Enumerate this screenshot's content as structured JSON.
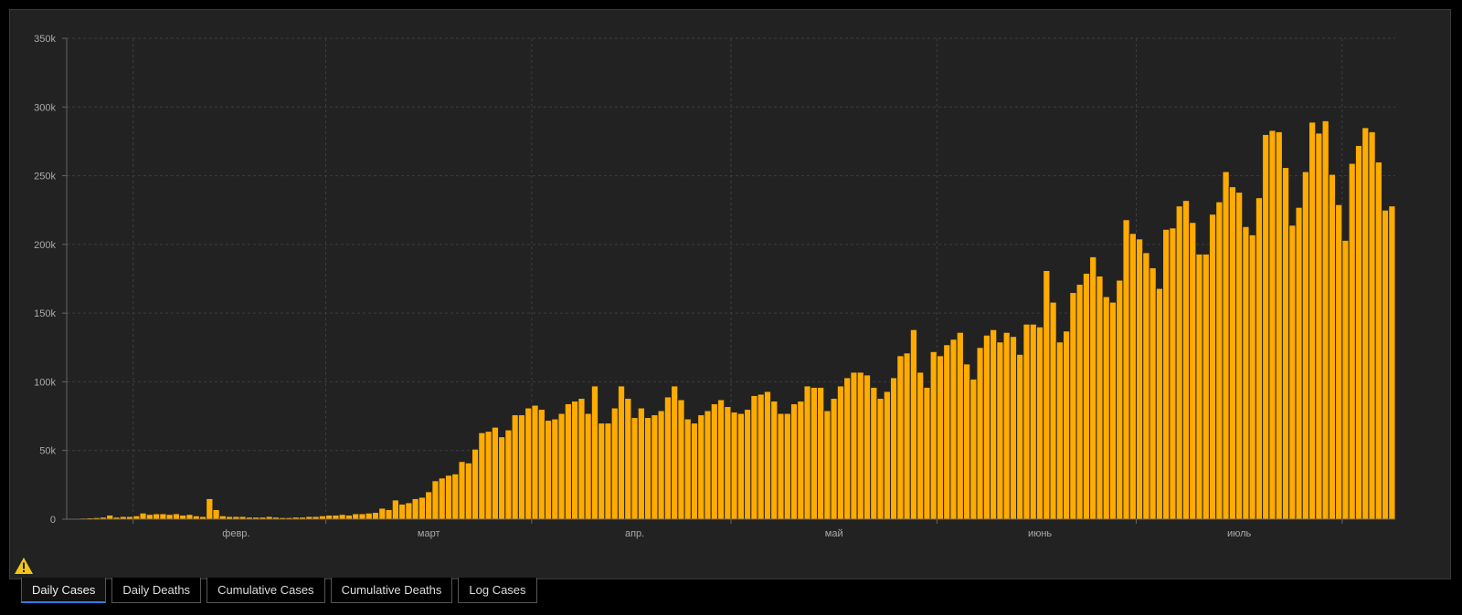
{
  "tabs": [
    {
      "label": "Daily Cases",
      "active": true
    },
    {
      "label": "Daily Deaths",
      "active": false
    },
    {
      "label": "Cumulative Cases",
      "active": false
    },
    {
      "label": "Cumulative Deaths",
      "active": false
    },
    {
      "label": "Log Cases",
      "active": false
    }
  ],
  "warning_icon": "warning-triangle-icon",
  "colors": {
    "bar": "#ffab00",
    "background": "#222222",
    "tab_active_underline": "#2b7de9",
    "warning": "#f5c518"
  },
  "chart_data": {
    "type": "bar",
    "title": "",
    "xlabel": "",
    "ylabel": "",
    "ylim": [
      0,
      350000
    ],
    "y_ticks": [
      0,
      50000,
      100000,
      150000,
      200000,
      250000,
      300000,
      350000
    ],
    "y_tick_labels": [
      "0",
      "50k",
      "100k",
      "150k",
      "200k",
      "250k",
      "300k",
      "350k"
    ],
    "x_month_labels": [
      {
        "label": "февр.",
        "bar_index": 25
      },
      {
        "label": "март",
        "bar_index": 54
      },
      {
        "label": "апр.",
        "bar_index": 85
      },
      {
        "label": "май",
        "bar_index": 115
      },
      {
        "label": "июнь",
        "bar_index": 146
      },
      {
        "label": "июль",
        "bar_index": 176
      }
    ],
    "x_gridline_bar_index": [
      10,
      39,
      70,
      100,
      131,
      161,
      192
    ],
    "grid": true,
    "values": [
      300,
      500,
      800,
      1000,
      1200,
      1500,
      3000,
      1500,
      2000,
      2000,
      2500,
      4500,
      3500,
      4000,
      4000,
      3500,
      4000,
      3000,
      3500,
      2500,
      2000,
      15000,
      7000,
      2500,
      2000,
      2000,
      2000,
      1500,
      1500,
      1500,
      2000,
      1500,
      1200,
      1200,
      1500,
      1500,
      2000,
      2000,
      2500,
      3000,
      3000,
      3500,
      3000,
      4000,
      4000,
      4500,
      5000,
      8000,
      7000,
      14000,
      11000,
      12000,
      15000,
      16000,
      20000,
      28000,
      30000,
      32000,
      33000,
      42000,
      41000,
      51000,
      63000,
      64000,
      67000,
      60000,
      65000,
      76000,
      76000,
      81000,
      83000,
      80000,
      72000,
      73000,
      77000,
      84000,
      86000,
      88000,
      77000,
      97000,
      70000,
      70000,
      81000,
      97000,
      88000,
      74000,
      81000,
      74000,
      76000,
      79000,
      89000,
      97000,
      87000,
      73000,
      70000,
      76000,
      79000,
      84000,
      87000,
      82000,
      78000,
      77000,
      80000,
      90000,
      91000,
      93000,
      86000,
      77000,
      77000,
      84000,
      86000,
      97000,
      96000,
      96000,
      79000,
      88000,
      97000,
      103000,
      107000,
      107000,
      105000,
      96000,
      88000,
      93000,
      103000,
      119000,
      121000,
      138000,
      107000,
      96000,
      122000,
      119000,
      127000,
      131000,
      136000,
      113000,
      102000,
      125000,
      134000,
      138000,
      129000,
      136000,
      133000,
      120000,
      142000,
      142000,
      140000,
      181000,
      158000,
      129000,
      137000,
      165000,
      171000,
      179000,
      191000,
      177000,
      162000,
      158000,
      174000,
      218000,
      208000,
      204000,
      194000,
      183000,
      168000,
      211000,
      212000,
      228000,
      232000,
      216000,
      193000,
      193000,
      222000,
      231000,
      253000,
      242000,
      238000,
      213000,
      207000,
      234000,
      280000,
      283000,
      282000,
      256000,
      214000,
      227000,
      253000,
      289000,
      281000,
      290000,
      251000,
      229000,
      203000,
      259000,
      272000,
      285000,
      282000,
      260000,
      225000,
      228000
    ]
  }
}
